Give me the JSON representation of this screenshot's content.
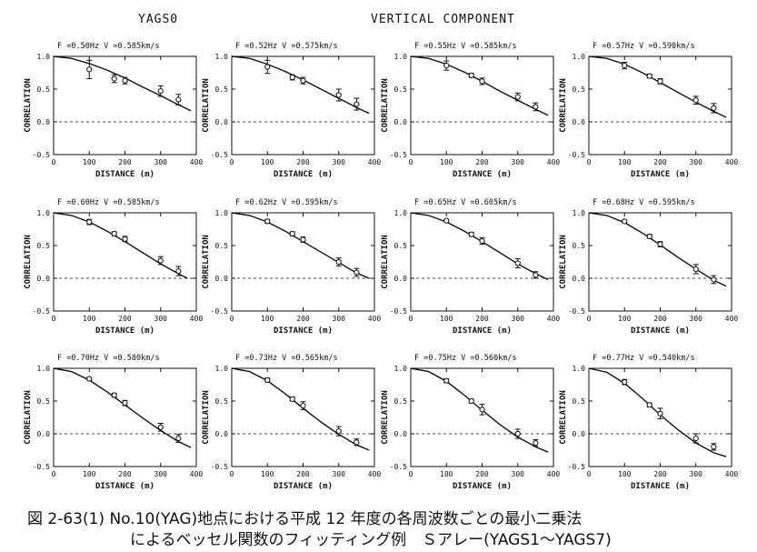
{
  "header": {
    "left": "YAGS0",
    "center": "VERTICAL COMPONENT"
  },
  "caption": {
    "line1": "図 2-63(1)  No.10(YAG)地点における平成 12 年度の各周波数ごとの最小二乗法",
    "line2": "によるベッセル関数のフィッティング例　Ｓアレー(YAGS1～YAGS7)"
  },
  "axes": {
    "ylabel": "CORRELATION",
    "xlabel": "DISTANCE (m)",
    "yticks": [
      "1.0",
      "0.5",
      "0.0",
      "-0.5"
    ],
    "xticks": [
      "0",
      "100",
      "200",
      "300",
      "400"
    ]
  },
  "chart_data": [
    {
      "type": "scatter",
      "title": "F =0.50Hz  V =0.585km/s",
      "xlim": [
        0,
        400
      ],
      "ylim": [
        -0.5,
        1.0
      ],
      "grid": false,
      "points": [
        {
          "x": 100,
          "y": 0.8,
          "err": 0.14
        },
        {
          "x": 170,
          "y": 0.66,
          "err": 0.06
        },
        {
          "x": 200,
          "y": 0.63,
          "err": 0.05
        },
        {
          "x": 300,
          "y": 0.47,
          "err": 0.08
        },
        {
          "x": 350,
          "y": 0.34,
          "err": 0.08
        }
      ],
      "fit": {
        "x": [
          0,
          50,
          100,
          150,
          200,
          250,
          300,
          350,
          385
        ],
        "y": [
          1.0,
          0.97,
          0.89,
          0.79,
          0.67,
          0.53,
          0.4,
          0.26,
          0.17
        ]
      }
    },
    {
      "type": "scatter",
      "title": "F =0.52Hz  V =0.575km/s",
      "xlim": [
        0,
        400
      ],
      "ylim": [
        -0.5,
        1.0
      ],
      "grid": false,
      "points": [
        {
          "x": 100,
          "y": 0.84,
          "err": 0.1
        },
        {
          "x": 170,
          "y": 0.68,
          "err": 0.04
        },
        {
          "x": 200,
          "y": 0.63,
          "err": 0.05
        },
        {
          "x": 300,
          "y": 0.41,
          "err": 0.09
        },
        {
          "x": 350,
          "y": 0.27,
          "err": 0.09
        }
      ],
      "fit": {
        "x": [
          0,
          50,
          100,
          150,
          200,
          250,
          300,
          350,
          385
        ],
        "y": [
          1.0,
          0.97,
          0.88,
          0.77,
          0.64,
          0.5,
          0.36,
          0.22,
          0.13
        ]
      }
    },
    {
      "type": "scatter",
      "title": "F =0.55Hz  V =0.585km/s",
      "xlim": [
        0,
        400
      ],
      "ylim": [
        -0.5,
        1.0
      ],
      "grid": false,
      "points": [
        {
          "x": 100,
          "y": 0.86,
          "err": 0.07
        },
        {
          "x": 170,
          "y": 0.71,
          "err": 0.03
        },
        {
          "x": 200,
          "y": 0.62,
          "err": 0.05
        },
        {
          "x": 300,
          "y": 0.38,
          "err": 0.06
        },
        {
          "x": 350,
          "y": 0.23,
          "err": 0.06
        }
      ],
      "fit": {
        "x": [
          0,
          50,
          100,
          150,
          200,
          250,
          300,
          350,
          385
        ],
        "y": [
          1.0,
          0.97,
          0.88,
          0.76,
          0.62,
          0.47,
          0.33,
          0.19,
          0.1
        ]
      }
    },
    {
      "type": "scatter",
      "title": "F =0.57Hz  V =0.590km/s",
      "xlim": [
        0,
        400
      ],
      "ylim": [
        -0.5,
        1.0
      ],
      "grid": false,
      "points": [
        {
          "x": 100,
          "y": 0.86,
          "err": 0.05
        },
        {
          "x": 170,
          "y": 0.7,
          "err": 0.03
        },
        {
          "x": 200,
          "y": 0.62,
          "err": 0.04
        },
        {
          "x": 300,
          "y": 0.33,
          "err": 0.06
        },
        {
          "x": 350,
          "y": 0.21,
          "err": 0.07
        }
      ],
      "fit": {
        "x": [
          0,
          50,
          100,
          150,
          200,
          250,
          300,
          350,
          385
        ],
        "y": [
          1.0,
          0.97,
          0.88,
          0.75,
          0.6,
          0.45,
          0.3,
          0.16,
          0.07
        ]
      }
    },
    {
      "type": "scatter",
      "title": "F =0.60Hz  V =0.585km/s",
      "xlim": [
        0,
        400
      ],
      "ylim": [
        -0.5,
        1.0
      ],
      "grid": false,
      "points": [
        {
          "x": 100,
          "y": 0.86,
          "err": 0.04
        },
        {
          "x": 170,
          "y": 0.68,
          "err": 0.03
        },
        {
          "x": 200,
          "y": 0.6,
          "err": 0.04
        },
        {
          "x": 300,
          "y": 0.27,
          "err": 0.06
        },
        {
          "x": 350,
          "y": 0.11,
          "err": 0.07
        }
      ],
      "fit": {
        "x": [
          0,
          50,
          100,
          150,
          200,
          250,
          300,
          350,
          375
        ],
        "y": [
          1.0,
          0.96,
          0.86,
          0.72,
          0.56,
          0.39,
          0.22,
          0.07,
          0.0
        ]
      }
    },
    {
      "type": "scatter",
      "title": "F =0.62Hz  V =0.595km/s",
      "xlim": [
        0,
        400
      ],
      "ylim": [
        -0.5,
        1.0
      ],
      "grid": false,
      "points": [
        {
          "x": 100,
          "y": 0.87,
          "err": 0.03
        },
        {
          "x": 170,
          "y": 0.68,
          "err": 0.03
        },
        {
          "x": 200,
          "y": 0.59,
          "err": 0.04
        },
        {
          "x": 300,
          "y": 0.25,
          "err": 0.06
        },
        {
          "x": 350,
          "y": 0.09,
          "err": 0.06
        }
      ],
      "fit": {
        "x": [
          0,
          50,
          100,
          150,
          200,
          250,
          300,
          350,
          385
        ],
        "y": [
          1.0,
          0.96,
          0.86,
          0.72,
          0.56,
          0.4,
          0.24,
          0.08,
          0.0
        ]
      }
    },
    {
      "type": "scatter",
      "title": "F =0.65Hz  V =0.605km/s",
      "xlim": [
        0,
        400
      ],
      "ylim": [
        -0.5,
        1.0
      ],
      "grid": false,
      "points": [
        {
          "x": 100,
          "y": 0.88,
          "err": 0.02
        },
        {
          "x": 170,
          "y": 0.67,
          "err": 0.03
        },
        {
          "x": 200,
          "y": 0.57,
          "err": 0.05
        },
        {
          "x": 300,
          "y": 0.23,
          "err": 0.07
        },
        {
          "x": 350,
          "y": 0.05,
          "err": 0.05
        }
      ],
      "fit": {
        "x": [
          0,
          50,
          100,
          150,
          200,
          250,
          300,
          350,
          385
        ],
        "y": [
          1.0,
          0.96,
          0.86,
          0.72,
          0.56,
          0.39,
          0.22,
          0.07,
          -0.02
        ]
      }
    },
    {
      "type": "scatter",
      "title": "F =0.68Hz  V =0.595km/s",
      "xlim": [
        0,
        400
      ],
      "ylim": [
        -0.5,
        1.0
      ],
      "grid": false,
      "points": [
        {
          "x": 100,
          "y": 0.87,
          "err": 0.02
        },
        {
          "x": 170,
          "y": 0.64,
          "err": 0.03
        },
        {
          "x": 200,
          "y": 0.52,
          "err": 0.04
        },
        {
          "x": 300,
          "y": 0.14,
          "err": 0.07
        },
        {
          "x": 350,
          "y": -0.02,
          "err": 0.06
        }
      ],
      "fit": {
        "x": [
          0,
          50,
          100,
          150,
          200,
          250,
          300,
          350,
          385
        ],
        "y": [
          1.0,
          0.96,
          0.85,
          0.69,
          0.51,
          0.32,
          0.14,
          -0.03,
          -0.12
        ]
      }
    },
    {
      "type": "scatter",
      "title": "F =0.70Hz  V =0.580km/s",
      "xlim": [
        0,
        400
      ],
      "ylim": [
        -0.5,
        1.0
      ],
      "grid": false,
      "points": [
        {
          "x": 100,
          "y": 0.84,
          "err": 0.02
        },
        {
          "x": 170,
          "y": 0.59,
          "err": 0.03
        },
        {
          "x": 200,
          "y": 0.47,
          "err": 0.04
        },
        {
          "x": 300,
          "y": 0.1,
          "err": 0.06
        },
        {
          "x": 350,
          "y": -0.07,
          "err": 0.06
        }
      ],
      "fit": {
        "x": [
          0,
          50,
          100,
          150,
          200,
          250,
          300,
          350,
          385
        ],
        "y": [
          1.0,
          0.95,
          0.82,
          0.64,
          0.44,
          0.24,
          0.05,
          -0.12,
          -0.21
        ]
      }
    },
    {
      "type": "scatter",
      "title": "F =0.73Hz  V =0.565km/s",
      "xlim": [
        0,
        400
      ],
      "ylim": [
        -0.5,
        1.0
      ],
      "grid": false,
      "points": [
        {
          "x": 100,
          "y": 0.82,
          "err": 0.03
        },
        {
          "x": 170,
          "y": 0.53,
          "err": 0.03
        },
        {
          "x": 200,
          "y": 0.43,
          "err": 0.06
        },
        {
          "x": 300,
          "y": 0.04,
          "err": 0.07
        },
        {
          "x": 350,
          "y": -0.13,
          "err": 0.05
        }
      ],
      "fit": {
        "x": [
          0,
          50,
          100,
          150,
          200,
          250,
          300,
          350,
          385
        ],
        "y": [
          1.0,
          0.95,
          0.81,
          0.61,
          0.39,
          0.18,
          -0.01,
          -0.17,
          -0.25
        ]
      }
    },
    {
      "type": "scatter",
      "title": "F =0.75Hz  V =0.560km/s",
      "xlim": [
        0,
        400
      ],
      "ylim": [
        -0.5,
        1.0
      ],
      "grid": false,
      "points": [
        {
          "x": 100,
          "y": 0.81,
          "err": 0.03
        },
        {
          "x": 170,
          "y": 0.5,
          "err": 0.03
        },
        {
          "x": 200,
          "y": 0.37,
          "err": 0.08
        },
        {
          "x": 300,
          "y": 0.0,
          "err": 0.07
        },
        {
          "x": 350,
          "y": -0.14,
          "err": 0.05
        }
      ],
      "fit": {
        "x": [
          0,
          50,
          100,
          150,
          200,
          250,
          300,
          350,
          385
        ],
        "y": [
          1.0,
          0.95,
          0.8,
          0.59,
          0.36,
          0.14,
          -0.05,
          -0.2,
          -0.28
        ]
      }
    },
    {
      "type": "scatter",
      "title": "F =0.77Hz  V =0.540km/s",
      "xlim": [
        0,
        400
      ],
      "ylim": [
        -0.5,
        1.0
      ],
      "grid": false,
      "points": [
        {
          "x": 100,
          "y": 0.79,
          "err": 0.04
        },
        {
          "x": 170,
          "y": 0.44,
          "err": 0.03
        },
        {
          "x": 200,
          "y": 0.31,
          "err": 0.08
        },
        {
          "x": 300,
          "y": -0.07,
          "err": 0.07
        },
        {
          "x": 350,
          "y": -0.2,
          "err": 0.05
        }
      ],
      "fit": {
        "x": [
          0,
          50,
          100,
          150,
          200,
          250,
          300,
          350,
          385
        ],
        "y": [
          1.0,
          0.94,
          0.77,
          0.54,
          0.29,
          0.06,
          -0.14,
          -0.29,
          -0.35
        ]
      }
    }
  ]
}
